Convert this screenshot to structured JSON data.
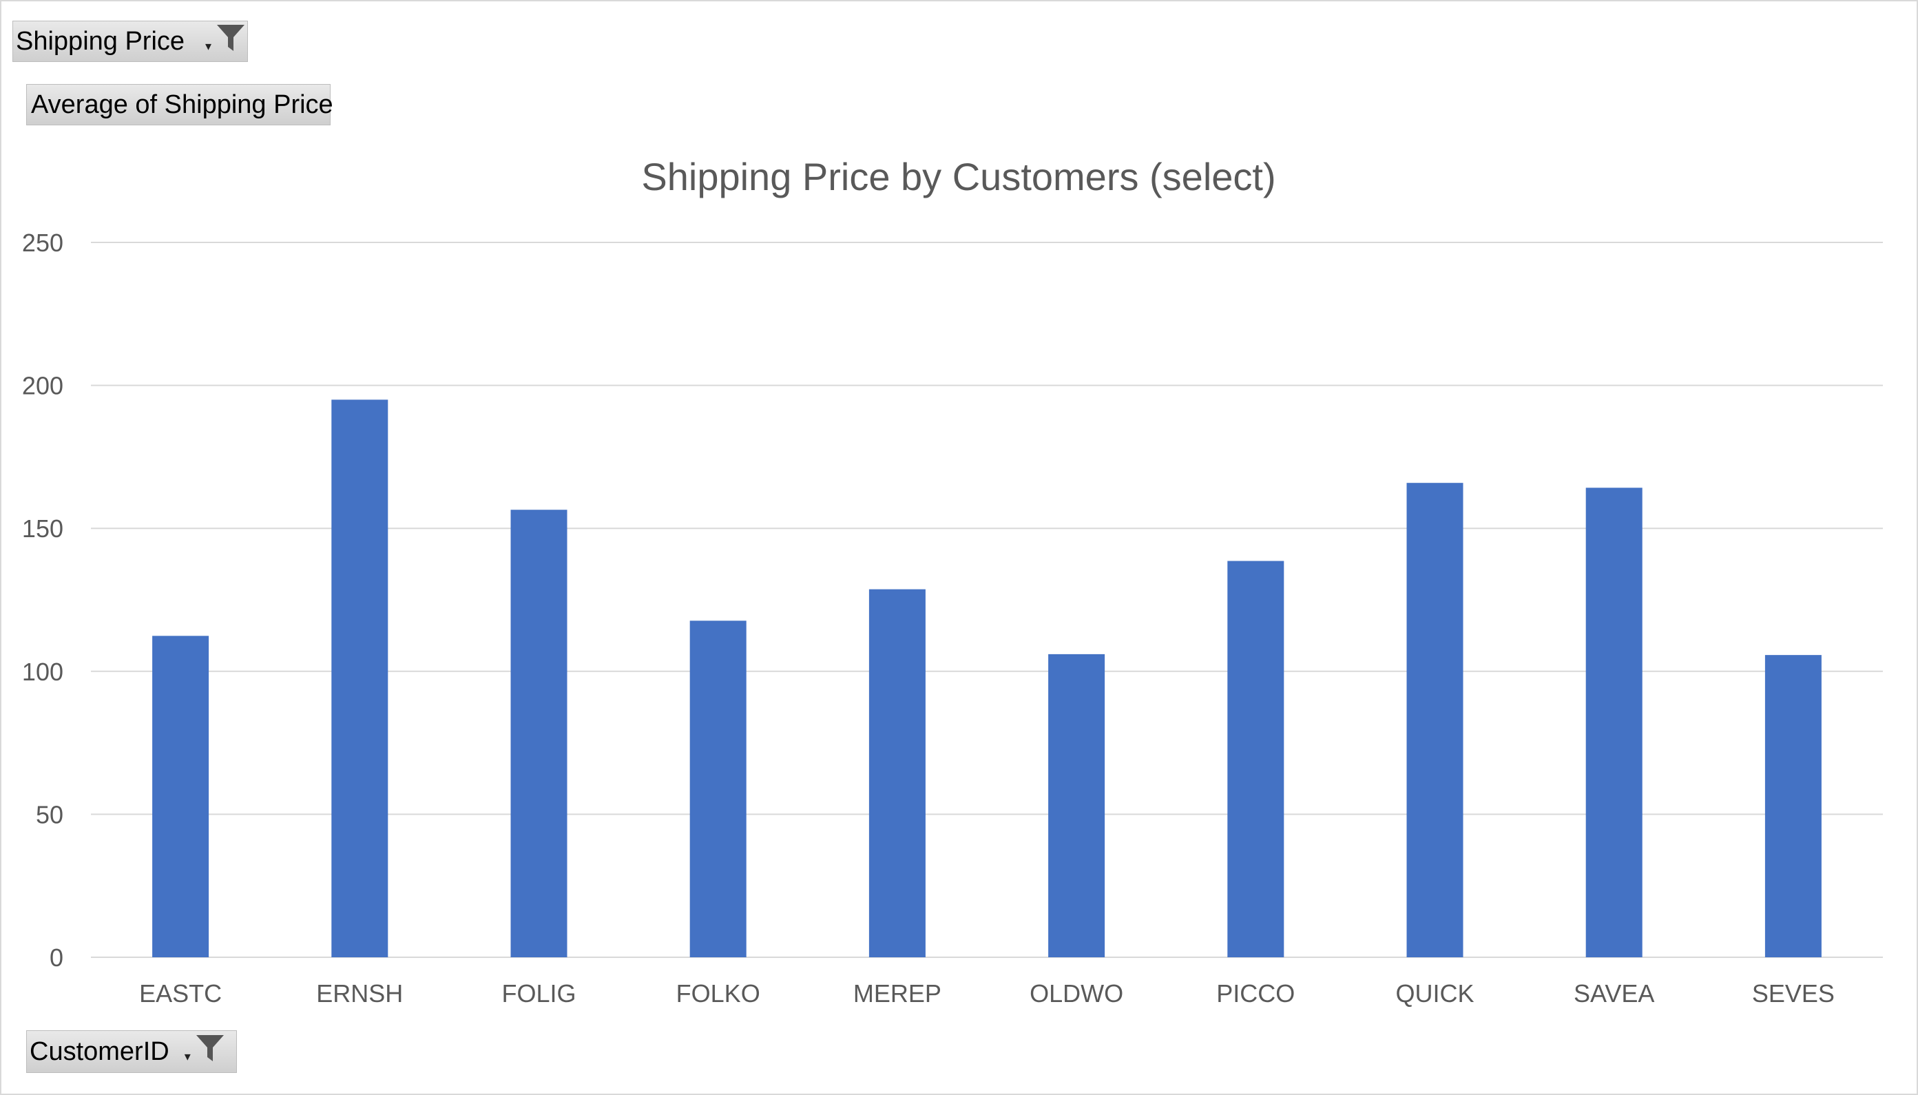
{
  "filter_field": {
    "label": "Shipping Price"
  },
  "value_field": {
    "label": "Average of Shipping Price"
  },
  "axis_field": {
    "label": "CustomerID"
  },
  "icons": {
    "filter": "funnel-filter-icon",
    "dropdown": "dropdown-arrow-icon"
  },
  "colors": {
    "bar": "#4472C4",
    "grid": "#d9d9d9",
    "text": "#595959"
  },
  "chart_data": {
    "type": "bar",
    "title": "Shipping Price by Customers (select)",
    "xlabel": "",
    "ylabel": "",
    "categories": [
      "EASTC",
      "ERNSH",
      "FOLIG",
      "FOLKO",
      "MEREP",
      "OLDWO",
      "PICCO",
      "QUICK",
      "SAVEA",
      "SEVES"
    ],
    "series": [
      {
        "values": [
          112.4,
          195.0,
          156.5,
          117.7,
          128.7,
          106.0,
          138.6,
          165.9,
          164.2,
          105.7
        ]
      }
    ],
    "ylim": [
      0,
      250
    ],
    "yticks": [
      0,
      50,
      100,
      150,
      200,
      250
    ],
    "grid": true,
    "legend": "none"
  }
}
